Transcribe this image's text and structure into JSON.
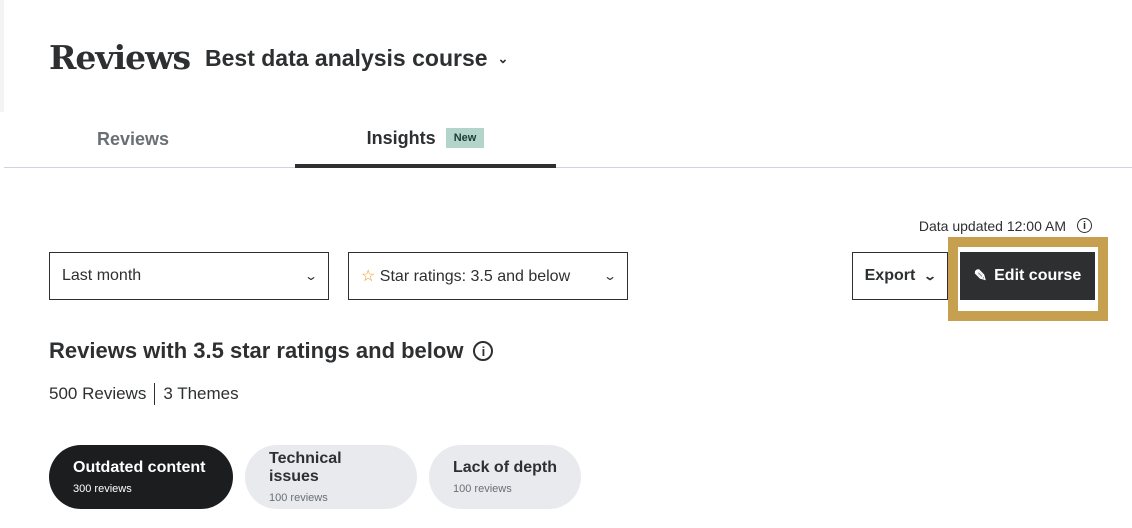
{
  "header": {
    "title": "Reviews",
    "course": "Best data analysis course"
  },
  "tabs": [
    {
      "label": "Reviews",
      "active": false
    },
    {
      "label": "Insights",
      "badge": "New",
      "active": true
    }
  ],
  "data_updated": "Data updated 12:00 AM",
  "filters": {
    "period": "Last month",
    "rating": "Star ratings: 3.5 and below"
  },
  "actions": {
    "export": "Export",
    "edit": "Edit course"
  },
  "summary": {
    "heading": "Reviews with 3.5 star ratings and below",
    "reviews": "500 Reviews",
    "themes": "3 Themes"
  },
  "themes": [
    {
      "label": "Outdated content",
      "count": "300 reviews",
      "active": true
    },
    {
      "label": "Technical issues",
      "count": "100 reviews",
      "active": false
    },
    {
      "label": "Lack of depth",
      "count": "100 reviews",
      "active": false
    }
  ],
  "colors": {
    "highlight": "#c69f4f",
    "badge": "#b3d4cb",
    "primary": "#2d2f31"
  }
}
